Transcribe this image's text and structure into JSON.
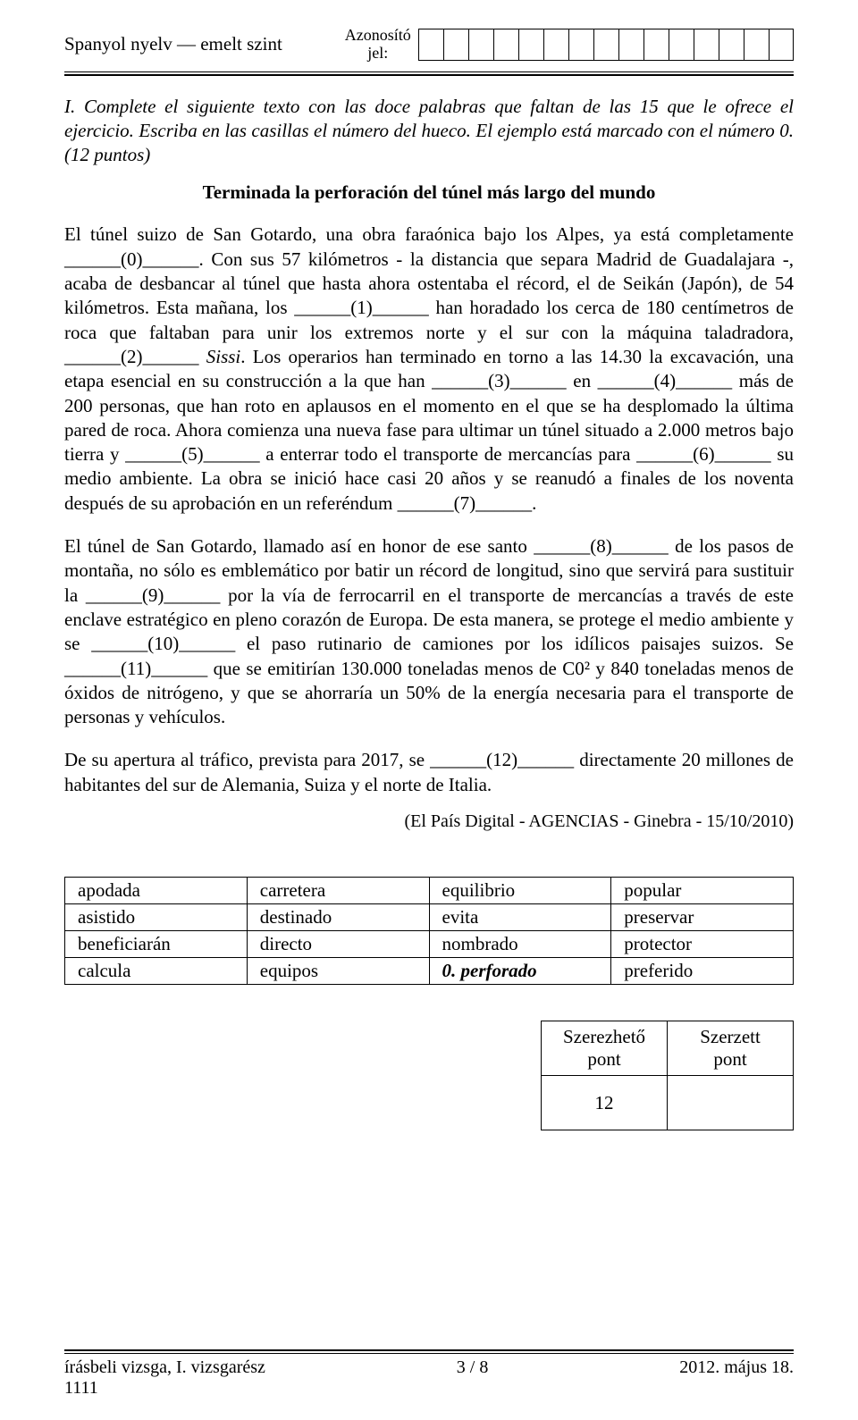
{
  "header": {
    "left": "Spanyol nyelv — emelt szint",
    "center_line1": "Azonosító",
    "center_line2": "jel:",
    "id_cells": 15
  },
  "instruction": "I. Complete el siguiente texto con las doce palabras que faltan de las 15 que le ofrece el ejercicio. Escriba en las casillas el número del hueco. El ejemplo está marcado con el número 0. (12 puntos)",
  "title": "Terminada la perforación del túnel más largo del mundo",
  "paragraphs": {
    "p1": "El túnel suizo de San Gotardo, una obra faraónica bajo los Alpes, ya está completamente ______(0)______. Con sus 57 kilómetros - la distancia que separa Madrid de Guadalajara -, acaba de desbancar al túnel que hasta ahora ostentaba el récord, el de Seikán (Japón), de 54 kilómetros. Esta mañana, los ______(1)______ han horadado los cerca de 180 centímetros de roca que faltaban para unir los extremos norte y el sur con la máquina taladradora, ______(2)______ Sissi. Los operarios han terminado en torno a las 14.30 la excavación, una etapa esencial en su construcción a la que han ______(3)______ en ______(4)______ más de 200 personas, que han roto en aplausos en el momento en el que se ha desplomado la última pared de roca. Ahora comienza una nueva fase para ultimar un túnel situado a 2.000 metros bajo tierra y ______(5)______ a enterrar todo el transporte de mercancías para ______(6)______ su medio ambiente. La obra se inició hace casi 20 años y se reanudó a finales de los noventa después de su aprobación en un referéndum ______(7)______.",
    "p2": "El túnel de San Gotardo, llamado así en honor de ese santo ______(8)______ de los pasos de montaña, no sólo es emblemático por batir un récord de longitud, sino que servirá para sustituir la ______(9)______ por la vía de ferrocarril en el transporte de mercancías a través de este enclave estratégico en pleno corazón de Europa. De esta manera, se protege el medio ambiente y se ______(10)______ el paso rutinario de camiones por los idílicos paisajes suizos. Se ______(11)______ que se emitirían 130.000 toneladas menos de C0² y 840 toneladas menos de óxidos de nitrógeno, y que se ahorraría un 50% de la energía necesaria para el transporte de personas y vehículos.",
    "p3": "De su apertura al tráfico, prevista para 2017, se ______(12)______ directamente 20 millones de habitantes del sur de Alemania, Suiza y el norte de Italia."
  },
  "source": "(El País Digital - AGENCIAS - Ginebra - 15/10/2010)",
  "word_table": {
    "rows": [
      [
        "apodada",
        "carretera",
        "equilibrio",
        "popular"
      ],
      [
        "asistido",
        "destinado",
        "evita",
        "preservar"
      ],
      [
        "beneficiarán",
        "directo",
        "nombrado",
        "protector"
      ],
      [
        "calcula",
        "equipos",
        "0.   perforado",
        "preferido"
      ]
    ],
    "zero_cell_row": 3,
    "zero_cell_col": 2,
    "zero_label": "0.",
    "zero_word": "perforado"
  },
  "score_box": {
    "col1_l1": "Szerezhető",
    "col1_l2": "pont",
    "col2_l1": "Szerzett",
    "col2_l2": "pont",
    "max": "12"
  },
  "footer": {
    "left_line1": "írásbeli vizsga, I. vizsgarész",
    "left_line2": "1111",
    "center": "3 / 8",
    "right": "2012. május 18."
  }
}
